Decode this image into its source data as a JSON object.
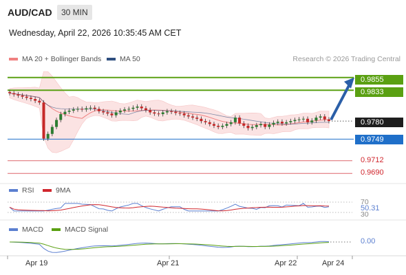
{
  "header": {
    "symbol": "AUD/CAD",
    "timeframe": "30 MIN",
    "datetime": "Wednesday, April 22, 2026 10:35:45 AM CET"
  },
  "legend": {
    "ma20_bb": "MA 20 + Bollinger Bands",
    "ma50": "MA 50",
    "credit": "Research © 2026 Trading Central"
  },
  "colors": {
    "ma20": "#f08080",
    "ma50": "#2f4f7f",
    "resistance": "#5aa012",
    "support": "#1f6fc9",
    "pivot_red": "#d0262d",
    "arrow": "#2b5fa8",
    "rsi": "#5b7fd0",
    "rsi_ma": "#d0262d",
    "macd": "#5b7fd0",
    "macd_signal": "#5aa012"
  },
  "chart_data": [
    {
      "type": "candlestick",
      "ylim": [
        0.9675,
        0.987
      ],
      "x_ticks": [
        "Apr 19",
        "Apr 21",
        "Apr 22",
        "Apr 24"
      ],
      "current_price": "0.9780",
      "levels": [
        {
          "value": 0.9855,
          "label": "0.9855",
          "kind": "resistance"
        },
        {
          "value": 0.9833,
          "label": "0.9833",
          "kind": "resistance"
        },
        {
          "value": 0.9749,
          "label": "0.9749",
          "kind": "support"
        },
        {
          "value": 0.9712,
          "label": "0.9712",
          "kind": "pivot"
        },
        {
          "value": 0.969,
          "label": "0.9690",
          "kind": "pivot"
        }
      ],
      "close_series": [
        0.9828,
        0.9826,
        0.9824,
        0.9822,
        0.982,
        0.9818,
        0.9815,
        0.9812,
        0.975,
        0.9758,
        0.977,
        0.9782,
        0.9792,
        0.9796,
        0.9798,
        0.98,
        0.9801,
        0.98,
        0.9802,
        0.9803,
        0.9801,
        0.9797,
        0.9795,
        0.9793,
        0.979,
        0.9795,
        0.9798,
        0.98,
        0.9801,
        0.9803,
        0.9805,
        0.9802,
        0.9799,
        0.9795,
        0.9793,
        0.9792,
        0.9795,
        0.9797,
        0.9796,
        0.9794,
        0.9793,
        0.979,
        0.9788,
        0.9786,
        0.9784,
        0.978,
        0.9778,
        0.9775,
        0.9772,
        0.977,
        0.9772,
        0.9775,
        0.9778,
        0.9786,
        0.9776,
        0.9772,
        0.9768,
        0.977,
        0.9773,
        0.9775,
        0.977,
        0.9774,
        0.9777,
        0.9779,
        0.9776,
        0.9778,
        0.978,
        0.9782,
        0.9783,
        0.9784,
        0.9778,
        0.9781,
        0.9786,
        0.9788,
        0.9783,
        0.978
      ],
      "forecast_target": 0.9855
    },
    {
      "type": "line",
      "name": "RSI",
      "series": [
        {
          "name": "RSI"
        },
        {
          "name": "9MA"
        }
      ],
      "ylim": [
        30,
        70
      ],
      "y_ticks": [
        "70",
        "30"
      ],
      "last_value": "50.31"
    },
    {
      "type": "line",
      "name": "MACD",
      "series": [
        {
          "name": "MACD"
        },
        {
          "name": "MACD Signal"
        }
      ],
      "last_value": "0.00"
    }
  ]
}
